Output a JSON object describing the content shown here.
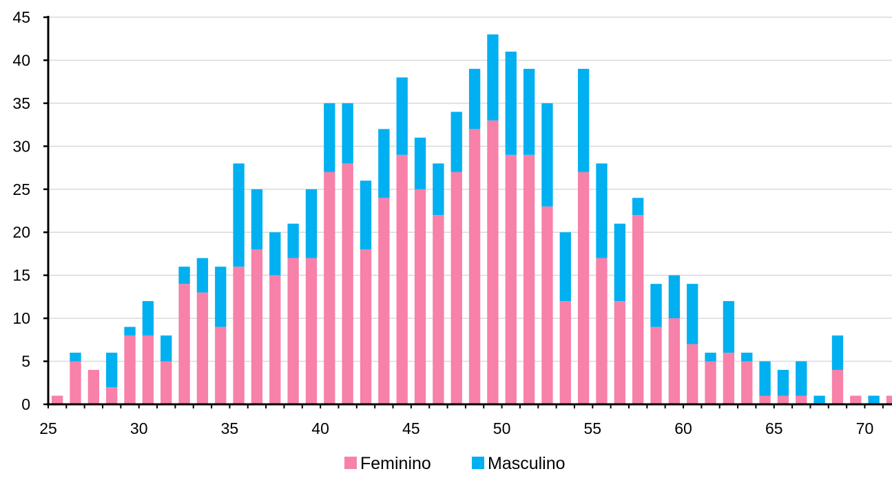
{
  "chart_data": {
    "type": "bar",
    "stacked": true,
    "title": "",
    "xlabel": "",
    "ylabel": "",
    "x": [
      25,
      26,
      27,
      28,
      29,
      30,
      31,
      32,
      33,
      34,
      35,
      36,
      37,
      38,
      39,
      40,
      41,
      42,
      43,
      44,
      45,
      46,
      47,
      48,
      49,
      50,
      51,
      52,
      53,
      54,
      55,
      56,
      57,
      58,
      59,
      60,
      61,
      62,
      63,
      64,
      65,
      66,
      67,
      68,
      69,
      70,
      71
    ],
    "series": [
      {
        "name": "Feminino",
        "color": "#F781A8",
        "values": [
          1,
          5,
          4,
          2,
          8,
          8,
          5,
          14,
          13,
          9,
          16,
          18,
          15,
          17,
          17,
          27,
          28,
          18,
          24,
          29,
          25,
          22,
          27,
          32,
          33,
          29,
          29,
          23,
          12,
          27,
          17,
          12,
          22,
          9,
          10,
          7,
          5,
          6,
          5,
          1,
          1,
          1,
          0,
          4,
          1,
          0,
          1
        ]
      },
      {
        "name": "Masculino",
        "color": "#00B0F0",
        "values": [
          0,
          1,
          0,
          4,
          1,
          4,
          3,
          2,
          4,
          7,
          12,
          7,
          5,
          4,
          8,
          8,
          7,
          8,
          8,
          9,
          6,
          6,
          7,
          7,
          10,
          12,
          10,
          12,
          8,
          12,
          11,
          9,
          2,
          5,
          5,
          7,
          1,
          6,
          1,
          4,
          3,
          4,
          1,
          4,
          0,
          1,
          0
        ]
      }
    ],
    "xlim": [
      25,
      71.5
    ],
    "ylim": [
      0,
      45
    ],
    "x_ticks": [
      "25",
      "30",
      "35",
      "40",
      "45",
      "50",
      "55",
      "60",
      "65",
      "70"
    ],
    "y_ticks": [
      "0",
      "5",
      "10",
      "15",
      "20",
      "25",
      "30",
      "35",
      "40",
      "45"
    ],
    "grid": "horizontal",
    "legend": {
      "position": "bottom",
      "items": [
        "Feminino",
        "Masculino"
      ]
    },
    "axis_color": "#000000",
    "grid_color": "#D9D9D9"
  }
}
